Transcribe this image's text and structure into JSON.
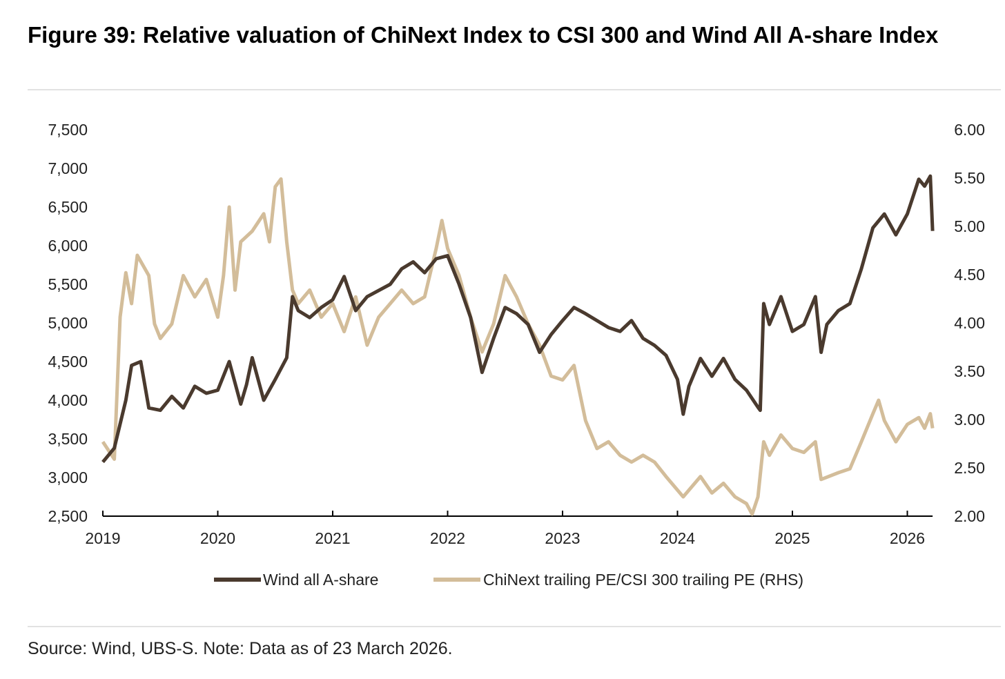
{
  "title": "Figure 39: Relative valuation of ChiNext Index to CSI 300 and Wind All A-share Index",
  "source": "Source: Wind, UBS-S. Note: Data as of 23 March 2026.",
  "colors": {
    "wind": "#4a3a2e",
    "chinext": "#d3bd9a"
  },
  "chart_data": {
    "type": "line",
    "title": "Figure 39: Relative valuation of ChiNext Index to CSI 300 and Wind All A-share Index",
    "xlabel": "",
    "ylabel": "",
    "ylabel_right": "",
    "xlim": [
      2019.0,
      2026.22
    ],
    "ylim": [
      2500,
      7500
    ],
    "ylim_right": [
      2.0,
      6.0
    ],
    "x_ticks": [
      "2019",
      "2020",
      "2021",
      "2022",
      "2023",
      "2024",
      "2025",
      "2026"
    ],
    "y_ticks": [
      "2,500",
      "3,000",
      "3,500",
      "4,000",
      "4,500",
      "5,000",
      "5,500",
      "6,000",
      "6,500",
      "7,000",
      "7,500"
    ],
    "y_ticks_right": [
      "2.00",
      "2.50",
      "3.00",
      "3.50",
      "4.00",
      "4.50",
      "5.00",
      "5.50",
      "6.00"
    ],
    "grid": false,
    "legend_position": "bottom",
    "series": [
      {
        "name": "Wind all A-share",
        "axis": "left",
        "x": [
          2019.0,
          2019.1,
          2019.2,
          2019.25,
          2019.33,
          2019.4,
          2019.5,
          2019.6,
          2019.7,
          2019.8,
          2019.9,
          2020.0,
          2020.1,
          2020.2,
          2020.25,
          2020.3,
          2020.4,
          2020.5,
          2020.6,
          2020.65,
          2020.7,
          2020.8,
          2020.9,
          2021.0,
          2021.1,
          2021.2,
          2021.3,
          2021.5,
          2021.6,
          2021.7,
          2021.8,
          2021.9,
          2022.0,
          2022.1,
          2022.2,
          2022.3,
          2022.4,
          2022.5,
          2022.6,
          2022.7,
          2022.8,
          2022.9,
          2023.0,
          2023.1,
          2023.2,
          2023.3,
          2023.4,
          2023.5,
          2023.6,
          2023.7,
          2023.8,
          2023.9,
          2024.0,
          2024.05,
          2024.1,
          2024.2,
          2024.3,
          2024.4,
          2024.5,
          2024.6,
          2024.7,
          2024.72,
          2024.75,
          2024.8,
          2024.9,
          2025.0,
          2025.1,
          2025.2,
          2025.25,
          2025.3,
          2025.4,
          2025.5,
          2025.6,
          2025.7,
          2025.8,
          2025.9,
          2026.0,
          2026.1,
          2026.15,
          2026.2,
          2026.22
        ],
        "values": [
          3200,
          3380,
          4000,
          4450,
          4500,
          3900,
          3870,
          4050,
          3900,
          4180,
          4090,
          4130,
          4500,
          3950,
          4200,
          4550,
          4000,
          4270,
          4550,
          5340,
          5160,
          5070,
          5200,
          5300,
          5600,
          5160,
          5340,
          5500,
          5700,
          5790,
          5650,
          5830,
          5870,
          5500,
          5070,
          4360,
          4800,
          5200,
          5120,
          4980,
          4620,
          4850,
          5030,
          5200,
          5120,
          5030,
          4940,
          4890,
          5030,
          4800,
          4710,
          4580,
          4270,
          3820,
          4180,
          4540,
          4310,
          4540,
          4270,
          4130,
          3910,
          3870,
          5250,
          4980,
          5340,
          4890,
          4980,
          5340,
          4620,
          4980,
          5160,
          5250,
          5700,
          6230,
          6410,
          6140,
          6410,
          6860,
          6770,
          6900,
          6190
        ]
      },
      {
        "name": "ChiNext trailing PE/CSI 300 trailing PE (RHS)",
        "axis": "right",
        "x": [
          2019.0,
          2019.1,
          2019.15,
          2019.2,
          2019.25,
          2019.3,
          2019.4,
          2019.45,
          2019.5,
          2019.6,
          2019.7,
          2019.8,
          2019.9,
          2020.0,
          2020.05,
          2020.1,
          2020.15,
          2020.2,
          2020.3,
          2020.4,
          2020.45,
          2020.5,
          2020.55,
          2020.6,
          2020.65,
          2020.7,
          2020.8,
          2020.9,
          2021.0,
          2021.1,
          2021.2,
          2021.3,
          2021.4,
          2021.5,
          2021.6,
          2021.7,
          2021.8,
          2021.9,
          2021.95,
          2022.0,
          2022.1,
          2022.2,
          2022.3,
          2022.4,
          2022.5,
          2022.6,
          2022.7,
          2022.8,
          2022.9,
          2023.0,
          2023.1,
          2023.2,
          2023.3,
          2023.4,
          2023.5,
          2023.6,
          2023.7,
          2023.8,
          2023.9,
          2024.05,
          2024.2,
          2024.3,
          2024.4,
          2024.5,
          2024.6,
          2024.65,
          2024.7,
          2024.75,
          2024.8,
          2024.9,
          2025.0,
          2025.1,
          2025.2,
          2025.25,
          2025.4,
          2025.5,
          2025.6,
          2025.7,
          2025.75,
          2025.8,
          2025.9,
          2026.0,
          2026.1,
          2026.15,
          2026.2,
          2026.22
        ],
        "values": [
          2.77,
          2.59,
          4.06,
          4.52,
          4.2,
          4.7,
          4.49,
          3.99,
          3.84,
          3.99,
          4.49,
          4.27,
          4.45,
          4.06,
          4.49,
          5.2,
          4.34,
          4.84,
          4.95,
          5.13,
          4.84,
          5.41,
          5.49,
          4.84,
          4.34,
          4.2,
          4.34,
          4.06,
          4.2,
          3.91,
          4.27,
          3.77,
          4.06,
          4.2,
          4.34,
          4.2,
          4.27,
          4.77,
          5.06,
          4.77,
          4.49,
          4.06,
          3.7,
          3.99,
          4.49,
          4.27,
          3.99,
          3.77,
          3.45,
          3.41,
          3.56,
          2.99,
          2.7,
          2.77,
          2.63,
          2.56,
          2.63,
          2.56,
          2.41,
          2.2,
          2.41,
          2.24,
          2.34,
          2.2,
          2.13,
          2.02,
          2.2,
          2.77,
          2.63,
          2.84,
          2.7,
          2.66,
          2.77,
          2.38,
          2.45,
          2.49,
          2.77,
          3.06,
          3.2,
          2.99,
          2.77,
          2.95,
          3.02,
          2.91,
          3.06,
          2.91
        ]
      }
    ]
  }
}
